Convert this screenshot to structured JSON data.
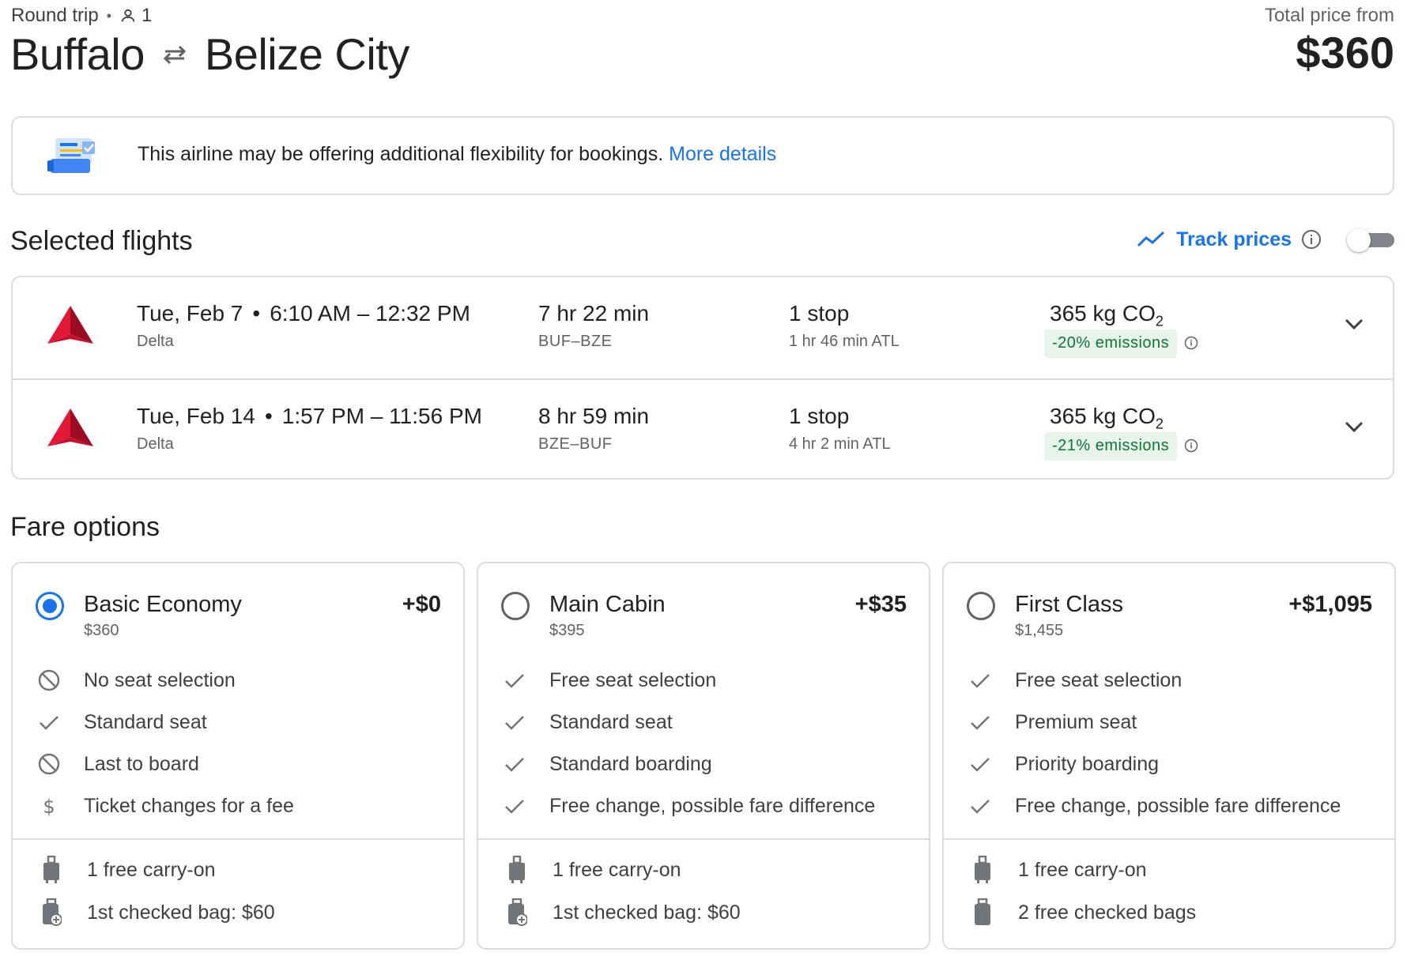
{
  "header": {
    "trip_type": "Round trip",
    "passengers": "1",
    "origin": "Buffalo",
    "destination": "Belize City",
    "total_label": "Total price from",
    "total_price": "$360"
  },
  "banner": {
    "text": "This airline may be offering additional flexibility for bookings.",
    "link": "More details"
  },
  "selected": {
    "heading": "Selected flights",
    "track_label": "Track prices",
    "track_enabled": false,
    "flights": [
      {
        "date": "Tue, Feb 7",
        "times": "6:10 AM – 12:32 PM",
        "airline": "Delta",
        "duration": "7 hr 22 min",
        "route": "BUF–BZE",
        "stops": "1 stop",
        "layover": "1 hr 46 min ATL",
        "co2_value": "365 kg CO",
        "co2_sub": "2",
        "emissions": "-20% emissions"
      },
      {
        "date": "Tue, Feb 14",
        "times": "1:57 PM – 11:56 PM",
        "airline": "Delta",
        "duration": "8 hr 59 min",
        "route": "BZE–BUF",
        "stops": "1 stop",
        "layover": "4 hr 2 min ATL",
        "co2_value": "365 kg CO",
        "co2_sub": "2",
        "emissions": "-21% emissions"
      }
    ]
  },
  "fares": {
    "heading": "Fare options",
    "options": [
      {
        "name": "Basic Economy",
        "price": "$360",
        "delta": "+$0",
        "selected": true,
        "features": [
          {
            "icon": "not-allowed-icon",
            "text": "No seat selection"
          },
          {
            "icon": "check-icon",
            "text": "Standard seat"
          },
          {
            "icon": "not-allowed-icon",
            "text": "Last to board"
          },
          {
            "icon": "dollar-icon",
            "text": "Ticket changes for a fee"
          }
        ],
        "bags": [
          {
            "icon": "carry-on-icon",
            "text": "1 free carry-on"
          },
          {
            "icon": "checked-bag-fee-icon",
            "text": "1st checked bag: $60"
          }
        ]
      },
      {
        "name": "Main Cabin",
        "price": "$395",
        "delta": "+$35",
        "selected": false,
        "features": [
          {
            "icon": "check-icon",
            "text": "Free seat selection"
          },
          {
            "icon": "check-icon",
            "text": "Standard seat"
          },
          {
            "icon": "check-icon",
            "text": "Standard boarding"
          },
          {
            "icon": "check-icon",
            "text": "Free change, possible fare difference"
          }
        ],
        "bags": [
          {
            "icon": "carry-on-icon",
            "text": "1 free carry-on"
          },
          {
            "icon": "checked-bag-fee-icon",
            "text": "1st checked bag: $60"
          }
        ]
      },
      {
        "name": "First Class",
        "price": "$1,455",
        "delta": "+$1,095",
        "selected": false,
        "features": [
          {
            "icon": "check-icon",
            "text": "Free seat selection"
          },
          {
            "icon": "check-icon",
            "text": "Premium seat"
          },
          {
            "icon": "check-icon",
            "text": "Priority boarding"
          },
          {
            "icon": "check-icon",
            "text": "Free change, possible fare difference"
          }
        ],
        "bags": [
          {
            "icon": "carry-on-icon",
            "text": "1 free carry-on"
          },
          {
            "icon": "checked-bag-icon",
            "text": "2 free checked bags"
          }
        ]
      }
    ]
  },
  "colors": {
    "accent": "#1a73e8",
    "emissions_bg": "#e6f4ea",
    "emissions_text": "#137333",
    "delta_red": "#c8102e"
  }
}
